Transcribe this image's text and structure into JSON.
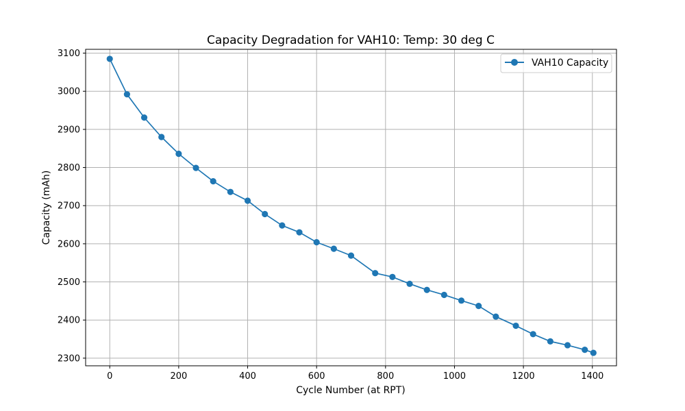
{
  "chart_data": {
    "type": "line",
    "title": "Capacity Degradation for VAH10: Temp: 30 deg C",
    "xlabel": "Cycle Number (at RPT)",
    "ylabel": "Capacity (mAh)",
    "xlim": [
      -70,
      1470
    ],
    "ylim": [
      2280,
      3110
    ],
    "xticks": [
      0,
      200,
      400,
      600,
      800,
      1000,
      1200,
      1400
    ],
    "yticks": [
      2300,
      2400,
      2500,
      2600,
      2700,
      2800,
      2900,
      3000,
      3100
    ],
    "grid": true,
    "legend_position": "top-right",
    "series": [
      {
        "name": "VAH10 Capacity",
        "color": "#1f77b4",
        "marker": "circle",
        "x": [
          0,
          50,
          100,
          150,
          200,
          250,
          300,
          350,
          400,
          450,
          500,
          550,
          600,
          650,
          700,
          770,
          820,
          870,
          920,
          970,
          1020,
          1070,
          1120,
          1178,
          1228,
          1278,
          1328,
          1378,
          1403
        ],
        "y": [
          3085,
          2992,
          2931,
          2880,
          2836,
          2799,
          2764,
          2736,
          2713,
          2678,
          2648,
          2630,
          2604,
          2587,
          2569,
          2523,
          2513,
          2495,
          2479,
          2466,
          2451,
          2437,
          2409,
          2385,
          2363,
          2344,
          2334,
          2322,
          2314
        ]
      }
    ]
  }
}
